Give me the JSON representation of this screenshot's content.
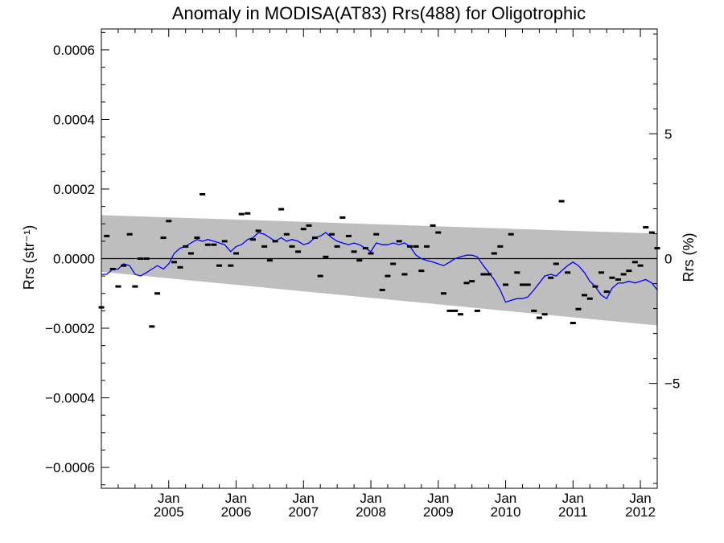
{
  "chart_data": {
    "type": "line",
    "title": "Anomaly in MODISA(AT83) Rrs(488) for Oligotrophic",
    "ylabel": "Rrs (str⁻¹)",
    "ylabel_right": "Rrs (%)",
    "xlim": [
      2004.0,
      2012.25
    ],
    "ylim": [
      -0.00066,
      0.00066
    ],
    "ylim_right": [
      -9.2,
      9.2
    ],
    "grid": false,
    "left_ticks": [
      "0.0006",
      "0.0004",
      "0.0002",
      "0.0000",
      "−0.0002",
      "−0.0004",
      "−0.0006"
    ],
    "left_tick_values": [
      0.0006,
      0.0004,
      0.0002,
      0.0,
      -0.0002,
      -0.0004,
      -0.0006
    ],
    "right_ticks": [
      "5",
      "0",
      "−5"
    ],
    "right_tick_values": [
      5,
      0,
      -5
    ],
    "x_ticks": [
      {
        "month": "Jan",
        "year": "2005",
        "value": 2005.0
      },
      {
        "month": "Jan",
        "year": "2006",
        "value": 2006.0
      },
      {
        "month": "Jan",
        "year": "2007",
        "value": 2007.0
      },
      {
        "month": "Jan",
        "year": "2008",
        "value": 2008.0
      },
      {
        "month": "Jan",
        "year": "2009",
        "value": 2009.0
      },
      {
        "month": "Jan",
        "year": "2010",
        "value": 2010.0
      },
      {
        "month": "Jan",
        "year": "2011",
        "value": 2011.0
      },
      {
        "month": "Jan",
        "year": "2012",
        "value": 2012.0
      }
    ],
    "zero_line": 0.0,
    "band": {
      "color": "#bebebe",
      "upper": [
        [
          2004.0,
          0.000125
        ],
        [
          2012.25,
          7.2e-05
        ]
      ],
      "lower": [
        [
          2004.0,
          -3.8e-05
        ],
        [
          2012.25,
          -0.000192
        ]
      ]
    },
    "series": [
      {
        "type": "line",
        "color": "#0000ff",
        "x": [
          2004.0,
          2004.08,
          2004.17,
          2004.25,
          2004.33,
          2004.42,
          2004.5,
          2004.58,
          2004.67,
          2004.75,
          2004.83,
          2004.92,
          2005.0,
          2005.08,
          2005.17,
          2005.25,
          2005.33,
          2005.42,
          2005.5,
          2005.58,
          2005.67,
          2005.75,
          2005.83,
          2005.92,
          2006.0,
          2006.08,
          2006.17,
          2006.25,
          2006.33,
          2006.42,
          2006.5,
          2006.58,
          2006.67,
          2006.75,
          2006.83,
          2006.92,
          2007.0,
          2007.08,
          2007.17,
          2007.25,
          2007.33,
          2007.42,
          2007.5,
          2007.58,
          2007.67,
          2007.75,
          2007.83,
          2007.92,
          2008.0,
          2008.08,
          2008.17,
          2008.25,
          2008.33,
          2008.42,
          2008.5,
          2008.58,
          2008.67,
          2008.75,
          2008.83,
          2008.92,
          2009.0,
          2009.08,
          2009.17,
          2009.25,
          2009.33,
          2009.42,
          2009.5,
          2009.58,
          2009.67,
          2009.75,
          2009.83,
          2009.92,
          2010.0,
          2010.08,
          2010.17,
          2010.25,
          2010.33,
          2010.42,
          2010.5,
          2010.58,
          2010.67,
          2010.75,
          2010.83,
          2010.92,
          2011.0,
          2011.08,
          2011.17,
          2011.25,
          2011.33,
          2011.42,
          2011.5,
          2011.58,
          2011.67,
          2011.75,
          2011.83,
          2011.92,
          2012.0,
          2012.08,
          2012.17,
          2012.25
        ],
        "y": [
          -4.5e-05,
          -4.5e-05,
          -3e-05,
          -3e-05,
          -1.5e-05,
          -2e-05,
          -4.5e-05,
          -5e-05,
          -4e-05,
          -3e-05,
          -2e-05,
          -3e-05,
          -1.5e-05,
          1.5e-05,
          3e-05,
          3.5e-05,
          4.5e-05,
          5.5e-05,
          5e-05,
          5.5e-05,
          5e-05,
          4.5e-05,
          4e-05,
          2e-05,
          3.5e-05,
          4e-05,
          5.5e-05,
          6e-05,
          7.5e-05,
          7e-05,
          6e-05,
          5e-05,
          6e-05,
          5e-05,
          5.5e-05,
          5e-05,
          4e-05,
          4.5e-05,
          6e-05,
          6.5e-05,
          7.5e-05,
          6e-05,
          5e-05,
          4.5e-05,
          4e-05,
          4.5e-05,
          4e-05,
          3e-05,
          2e-05,
          4.5e-05,
          4e-05,
          4e-05,
          4.5e-05,
          4e-05,
          4.5e-05,
          3.5e-05,
          1e-05,
          0.0,
          -5e-06,
          -1e-05,
          -1.5e-05,
          -2e-05,
          -1e-05,
          0.0,
          5e-06,
          1e-05,
          1e-05,
          5e-06,
          -2e-05,
          -4e-05,
          -6e-05,
          -9e-05,
          -0.000125,
          -0.00012,
          -0.000115,
          -0.000115,
          -0.00011,
          -9e-05,
          -7e-05,
          -5e-05,
          -4.5e-05,
          -5e-05,
          -3.5e-05,
          -2e-05,
          -1e-05,
          -2e-05,
          -4e-05,
          -6.5e-05,
          -8e-05,
          -0.000105,
          -0.000115,
          -8.5e-05,
          -7e-05,
          -7e-05,
          -6.5e-05,
          -7e-05,
          -6.5e-05,
          -6e-05,
          -7e-05,
          -9e-05
        ]
      },
      {
        "type": "markers",
        "color": "#000000",
        "x": [
          2004.0,
          2004.08,
          2004.17,
          2004.25,
          2004.33,
          2004.42,
          2004.5,
          2004.58,
          2004.67,
          2004.75,
          2004.83,
          2004.92,
          2005.0,
          2005.08,
          2005.17,
          2005.25,
          2005.33,
          2005.42,
          2005.5,
          2005.58,
          2005.67,
          2005.75,
          2005.83,
          2005.92,
          2006.0,
          2006.08,
          2006.17,
          2006.25,
          2006.33,
          2006.42,
          2006.5,
          2006.58,
          2006.67,
          2006.75,
          2006.83,
          2006.92,
          2007.0,
          2007.08,
          2007.17,
          2007.25,
          2007.33,
          2007.42,
          2007.5,
          2007.58,
          2007.67,
          2007.75,
          2007.83,
          2007.92,
          2008.0,
          2008.08,
          2008.17,
          2008.25,
          2008.33,
          2008.42,
          2008.5,
          2008.58,
          2008.67,
          2008.75,
          2008.83,
          2008.92,
          2009.0,
          2009.08,
          2009.17,
          2009.25,
          2009.33,
          2009.42,
          2009.5,
          2009.58,
          2009.67,
          2009.75,
          2009.83,
          2009.92,
          2010.0,
          2010.08,
          2010.17,
          2010.25,
          2010.33,
          2010.42,
          2010.5,
          2010.58,
          2010.67,
          2010.75,
          2010.83,
          2010.92,
          2011.0,
          2011.08,
          2011.17,
          2011.25,
          2011.33,
          2011.42,
          2011.5,
          2011.58,
          2011.67,
          2011.75,
          2011.83,
          2011.92,
          2012.0,
          2012.08,
          2012.17,
          2012.25
        ],
        "y": [
          -0.00014,
          6.5e-05,
          -3e-05,
          -8e-05,
          -2e-05,
          7e-05,
          -8e-05,
          0.0,
          0.0,
          -0.000195,
          -0.0001,
          6e-05,
          0.000108,
          -1e-05,
          -2.5e-05,
          3.5e-05,
          1.5e-05,
          6e-05,
          0.000185,
          4e-05,
          4e-05,
          -2e-05,
          5e-05,
          -2e-05,
          1.5e-05,
          0.000128,
          0.00013,
          5.5e-05,
          8e-05,
          3.5e-05,
          -5e-06,
          5e-05,
          0.000142,
          7e-05,
          3.5e-05,
          2e-05,
          8.5e-05,
          9.5e-05,
          6e-05,
          -5e-05,
          5e-06,
          7e-05,
          3.5e-05,
          0.000118,
          6.5e-05,
          2e-05,
          -5e-06,
          3e-05,
          1.5e-05,
          7e-05,
          -9e-05,
          -5e-05,
          -1.5e-05,
          5e-05,
          -4.5e-05,
          3.5e-05,
          3.5e-05,
          -3.5e-05,
          3.5e-05,
          9.5e-05,
          7.5e-05,
          -0.0001,
          -0.00015,
          -0.00015,
          -0.00016,
          -7e-05,
          -6.5e-05,
          -0.00015,
          -4.5e-05,
          -4.5e-05,
          1.5e-05,
          3.5e-05,
          -7.5e-05,
          7e-05,
          -4e-05,
          -7.5e-05,
          -7.5e-05,
          -0.00015,
          -0.00017,
          -0.00016,
          -5.5e-05,
          -1.5e-05,
          0.000165,
          -4e-05,
          -0.000185,
          -0.000145,
          -0.000105,
          -0.000115,
          -8e-05,
          -4e-05,
          -9.5e-05,
          -5.5e-05,
          -6e-05,
          -4.5e-05,
          -3.5e-05,
          -1e-05,
          -2e-05,
          9e-05,
          7.5e-05,
          3e-05
        ]
      }
    ]
  }
}
